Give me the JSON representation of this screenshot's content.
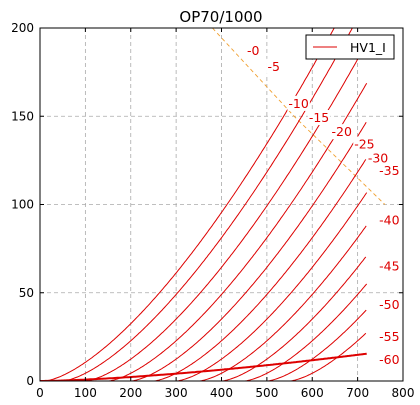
{
  "chart_data": {
    "type": "line",
    "title": "OP70/1000",
    "xlabel": "",
    "ylabel": "",
    "xlim": [
      0,
      800
    ],
    "ylim": [
      0,
      200
    ],
    "xticks": [
      "0",
      "100",
      "200",
      "300",
      "400",
      "500",
      "600",
      "700",
      "800"
    ],
    "yticks": [
      "0",
      "50",
      "100",
      "150",
      "200"
    ],
    "grid": true,
    "legend": {
      "position": "top-right",
      "entries": [
        "HV1_I"
      ]
    },
    "colors": {
      "curve": "#dd0000",
      "max_power": "#f0a030",
      "grid": "#aaaaaa"
    },
    "series": [
      {
        "label": "-0",
        "k": 0.000801,
        "n": 1.5
      },
      {
        "label": "-5",
        "v0": 10,
        "k": 0.0124,
        "n": 1.5
      },
      {
        "label": "-10",
        "v0": 50,
        "k": 0.0124,
        "n": 1.5
      },
      {
        "label": "-15",
        "v0": 100,
        "k": 0.0124,
        "n": 1.5
      },
      {
        "label": "-20",
        "v0": 150,
        "k": 0.0124,
        "n": 1.5
      },
      {
        "label": "-25",
        "v0": 200,
        "k": 0.0124,
        "n": 1.5
      },
      {
        "label": "-30",
        "v0": 250,
        "k": 0.0124,
        "n": 1.5
      },
      {
        "label": "-35",
        "v0": 300,
        "k": 0.0124,
        "n": 1.5
      },
      {
        "label": "-40",
        "v0": 350,
        "k": 0.0124,
        "n": 1.5
      },
      {
        "label": "-45",
        "v0": 400,
        "k": 0.0124,
        "n": 1.5
      },
      {
        "label": "-50",
        "v0": 450,
        "k": 0.0124,
        "n": 1.5
      },
      {
        "label": "-55",
        "v0": 500,
        "k": 0.0124,
        "n": 1.5
      },
      {
        "label": "-60",
        "v0": 550,
        "k": 0.0124,
        "n": 1.5
      }
    ],
    "max_power_line": {
      "x": [
        380,
        560,
        760
      ],
      "y": [
        200,
        150,
        100
      ]
    },
    "curve_label_positions": [
      {
        "label": "-0",
        "x": 470,
        "y": 187
      },
      {
        "label": "-5",
        "x": 515,
        "y": 178
      },
      {
        "label": "-10",
        "x": 570,
        "y": 157
      },
      {
        "label": "-15",
        "x": 615,
        "y": 149
      },
      {
        "label": "-20",
        "x": 665,
        "y": 141
      },
      {
        "label": "-25",
        "x": 715,
        "y": 134
      },
      {
        "label": "-30",
        "x": 745,
        "y": 126
      },
      {
        "label": "-35",
        "x": 770,
        "y": 119
      },
      {
        "label": "-40",
        "x": 770,
        "y": 91
      },
      {
        "label": "-45",
        "x": 770,
        "y": 65
      },
      {
        "label": "-50",
        "x": 770,
        "y": 43
      },
      {
        "label": "-55",
        "x": 770,
        "y": 25
      },
      {
        "label": "-60",
        "x": 770,
        "y": 12
      }
    ]
  }
}
